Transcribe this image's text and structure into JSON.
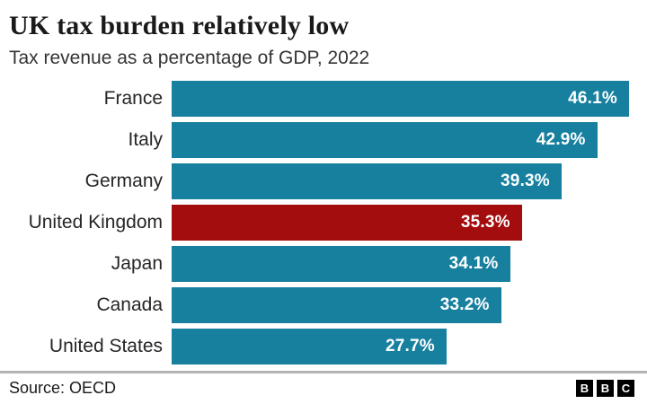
{
  "header": {
    "title": "UK tax burden relatively low",
    "subtitle": "Tax revenue as a percentage of GDP, 2022"
  },
  "chart_data": {
    "type": "bar",
    "orientation": "horizontal",
    "title": "UK tax burden relatively low",
    "subtitle": "Tax revenue as a percentage of GDP, 2022",
    "categories": [
      "France",
      "Italy",
      "Germany",
      "United Kingdom",
      "Japan",
      "Canada",
      "United States"
    ],
    "values": [
      46.1,
      42.9,
      39.3,
      35.3,
      34.1,
      33.2,
      27.7
    ],
    "value_labels": [
      "46.1%",
      "42.9%",
      "39.3%",
      "35.3%",
      "34.1%",
      "33.2%",
      "27.7%"
    ],
    "highlight_category": "United Kingdom",
    "xlabel": "",
    "ylabel": "",
    "xlim": [
      0,
      46.1
    ],
    "grid": false,
    "legend": "none"
  },
  "colors": {
    "bar": "#17809f",
    "highlight": "#a30d0e"
  },
  "footer": {
    "source": "Source: OECD",
    "logo_letters": [
      "B",
      "B",
      "C"
    ]
  }
}
